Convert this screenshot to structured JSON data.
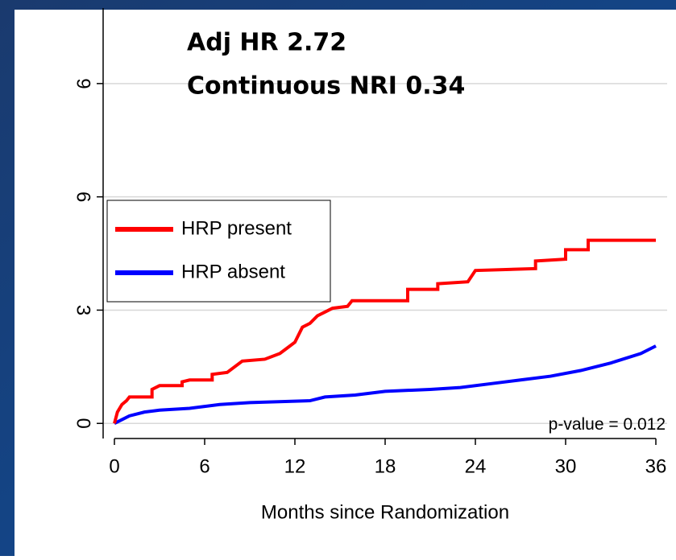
{
  "chart_data": {
    "type": "line",
    "annotations": [
      "Adj HR 2.72",
      "Continuous NRI 0.34",
      "p-value = 0.012"
    ],
    "x_label": "Months since Randomization",
    "xlim": [
      -0.75,
      36.75
    ],
    "xticks": [
      0,
      6,
      12,
      18,
      24,
      30,
      36
    ],
    "ylim": [
      -0.4,
      11
    ],
    "yticks": [
      0,
      3,
      6,
      9
    ],
    "grid": true,
    "legend": "upper left",
    "series": [
      {
        "name": "HRP present",
        "color": "#ff0000",
        "x": [
          0,
          0.2,
          0.5,
          0.8,
          1,
          2.5,
          2.5,
          3,
          4.5,
          4.5,
          5,
          6.5,
          6.5,
          7.5,
          8,
          8.5,
          10,
          11,
          11.5,
          12,
          12.5,
          13,
          13.5,
          14,
          14.5,
          15.5,
          15.8,
          19.5,
          19.5,
          21.5,
          21.5,
          23.5,
          24,
          28,
          28,
          30,
          30,
          31.5,
          31.5,
          36
        ],
        "values": [
          0,
          0.3,
          0.5,
          0.6,
          0.7,
          0.7,
          0.9,
          1.0,
          1.0,
          1.1,
          1.15,
          1.15,
          1.3,
          1.35,
          1.5,
          1.65,
          1.7,
          1.85,
          2.0,
          2.15,
          2.55,
          2.65,
          2.85,
          2.95,
          3.05,
          3.1,
          3.25,
          3.25,
          3.55,
          3.55,
          3.7,
          3.75,
          4.05,
          4.1,
          4.3,
          4.35,
          4.6,
          4.6,
          4.85,
          4.85
        ]
      },
      {
        "name": "HRP absent",
        "color": "#0000ff",
        "x": [
          0,
          0.5,
          1,
          2,
          3,
          5,
          6,
          7,
          9,
          13,
          14,
          16,
          18,
          21,
          23,
          25,
          27,
          29,
          31,
          33,
          35,
          36
        ],
        "values": [
          0,
          0.1,
          0.2,
          0.3,
          0.35,
          0.4,
          0.45,
          0.5,
          0.55,
          0.6,
          0.7,
          0.75,
          0.85,
          0.9,
          0.95,
          1.05,
          1.15,
          1.25,
          1.4,
          1.6,
          1.85,
          2.05
        ]
      }
    ]
  }
}
